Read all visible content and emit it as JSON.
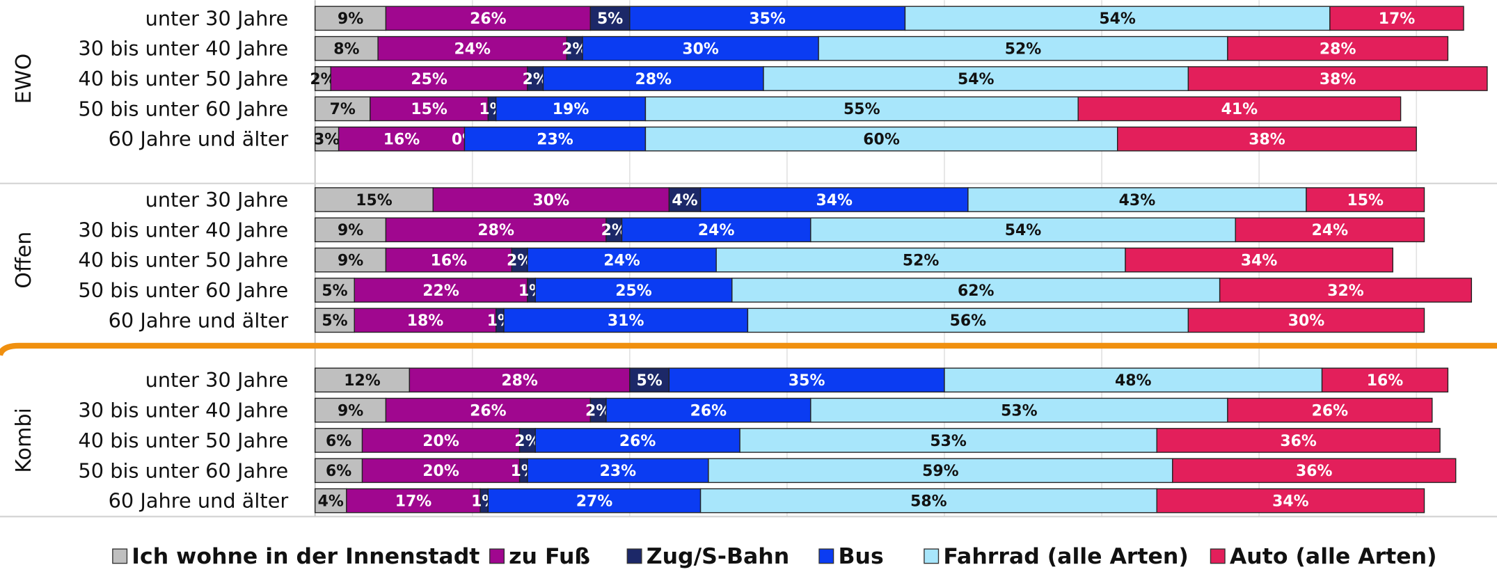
{
  "chart_data": {
    "type": "bar",
    "orientation": "horizontal",
    "stacked": true,
    "groups": [
      "EWO",
      "Offen",
      "Kombi"
    ],
    "categories": [
      "unter 30 Jahre",
      "30 bis unter 40 Jahre",
      "40 bis unter 50 Jahre",
      "50 bis unter 60 Jahre",
      "60 Jahre und älter"
    ],
    "xlim": [
      0,
      150
    ],
    "xticks": [
      0,
      20,
      40,
      60,
      80,
      100,
      120,
      140
    ],
    "grid": true,
    "legend": "bottom",
    "series": [
      {
        "name": "Ich wohne in der Innenstadt",
        "color": "#bfbfbf",
        "values": [
          [
            9,
            8,
            2,
            7,
            3
          ],
          [
            15,
            9,
            9,
            5,
            5
          ],
          [
            12,
            9,
            6,
            6,
            4
          ]
        ],
        "value_labels": [
          [
            "9%",
            "8%",
            "2%",
            "7%",
            "3%"
          ],
          [
            "15%",
            "9%",
            "9%",
            "5%",
            "5%"
          ],
          [
            "12%",
            "9%",
            "6%",
            "6%",
            "4%"
          ]
        ]
      },
      {
        "name": "zu Fuß",
        "color": "#a0078f",
        "values": [
          [
            26,
            24,
            25,
            15,
            16
          ],
          [
            30,
            28,
            16,
            22,
            18
          ],
          [
            28,
            26,
            20,
            20,
            17
          ]
        ],
        "value_labels": [
          [
            "26%",
            "24%",
            "25%",
            "15%",
            "16%"
          ],
          [
            "30%",
            "28%",
            "16%",
            "22%",
            "18%"
          ],
          [
            "28%",
            "26%",
            "20%",
            "20%",
            "17%"
          ]
        ]
      },
      {
        "name": "Zug/S-Bahn",
        "color": "#1c2868",
        "values": [
          [
            5,
            2,
            2,
            1,
            0
          ],
          [
            4,
            2,
            2,
            1,
            1
          ],
          [
            5,
            2,
            2,
            1,
            1
          ]
        ],
        "value_labels": [
          [
            "5%",
            "2%",
            "2%",
            "1%",
            "0%"
          ],
          [
            "4%",
            "2%",
            "2%",
            "1%",
            "1%"
          ],
          [
            "5%",
            "2%",
            "2%",
            "1%",
            "1%"
          ]
        ]
      },
      {
        "name": "Bus",
        "color": "#0b3cf2",
        "values": [
          [
            35,
            30,
            28,
            19,
            23
          ],
          [
            34,
            24,
            24,
            25,
            31
          ],
          [
            35,
            26,
            26,
            23,
            27
          ]
        ],
        "value_labels": [
          [
            "35%",
            "30%",
            "28%",
            "19%",
            "23%"
          ],
          [
            "34%",
            "24%",
            "24%",
            "25%",
            "31%"
          ],
          [
            "35%",
            "26%",
            "26%",
            "23%",
            "27%"
          ]
        ]
      },
      {
        "name": "Fahrrad (alle Arten)",
        "color": "#a8e6fb",
        "values": [
          [
            54,
            52,
            54,
            55,
            60
          ],
          [
            43,
            54,
            52,
            62,
            56
          ],
          [
            48,
            53,
            53,
            59,
            58
          ]
        ],
        "value_labels": [
          [
            "54%",
            "52%",
            "54%",
            "55%",
            "60%"
          ],
          [
            "43%",
            "54%",
            "52%",
            "62%",
            "56%"
          ],
          [
            "48%",
            "53%",
            "53%",
            "59%",
            "58%"
          ]
        ]
      },
      {
        "name": "Auto (alle Arten)",
        "color": "#e31f5b",
        "values": [
          [
            17,
            28,
            38,
            41,
            38
          ],
          [
            15,
            24,
            34,
            32,
            30
          ],
          [
            16,
            26,
            36,
            36,
            34
          ]
        ],
        "value_labels": [
          [
            "17%",
            "28%",
            "38%",
            "41%",
            "38%"
          ],
          [
            "15%",
            "24%",
            "34%",
            "32%",
            "30%"
          ],
          [
            "16%",
            "26%",
            "36%",
            "36%",
            "34%"
          ]
        ]
      }
    ]
  }
}
